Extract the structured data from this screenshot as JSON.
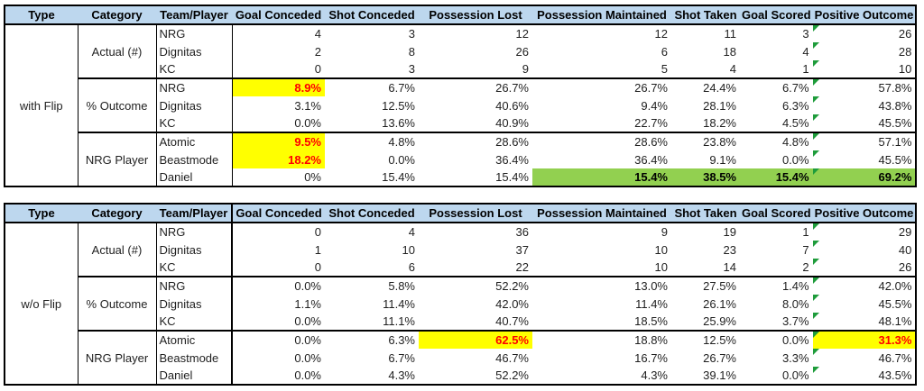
{
  "colors": {
    "header_bg": "#BDD7EE",
    "highlight_yellow": "#FFFF00",
    "highlight_yellow_text": "#FF0000",
    "highlight_green": "#92D050",
    "error_indicator_green": "#1E9C3B",
    "border": "#000000"
  },
  "columns": [
    "Type",
    "Category",
    "Team/Player",
    "Goal Conceded",
    "Shot Conceded",
    "Possession Lost",
    "Possession Maintained",
    "Shot Taken",
    "Goal Scored",
    "Positive Outcome"
  ],
  "error_indicator": {
    "meaning": "excel-error-triangle",
    "applies_to_column": "Positive Outcome"
  },
  "tables": [
    {
      "type_label": "with Flip",
      "groups": [
        {
          "category": "Actual (#)",
          "rows": [
            {
              "team": "NRG",
              "values": [
                "4",
                "3",
                "12",
                "12",
                "11",
                "3",
                "26"
              ]
            },
            {
              "team": "Dignitas",
              "values": [
                "2",
                "8",
                "26",
                "6",
                "18",
                "4",
                "28"
              ]
            },
            {
              "team": "KC",
              "values": [
                "0",
                "3",
                "9",
                "5",
                "4",
                "1",
                "10"
              ]
            }
          ]
        },
        {
          "category": "% Outcome",
          "rows": [
            {
              "team": "NRG",
              "values": [
                {
                  "v": "8.9%",
                  "s": "y"
                },
                "6.7%",
                "26.7%",
                "26.7%",
                "24.4%",
                "6.7%",
                "57.8%"
              ]
            },
            {
              "team": "Dignitas",
              "values": [
                "3.1%",
                "12.5%",
                "40.6%",
                "9.4%",
                "28.1%",
                "6.3%",
                "43.8%"
              ]
            },
            {
              "team": "KC",
              "values": [
                "0.0%",
                "13.6%",
                "40.9%",
                "22.7%",
                "18.2%",
                "4.5%",
                "45.5%"
              ]
            }
          ]
        },
        {
          "category": "NRG Player",
          "rows": [
            {
              "team": "Atomic",
              "values": [
                {
                  "v": "9.5%",
                  "s": "y"
                },
                "4.8%",
                "28.6%",
                "28.6%",
                "23.8%",
                "4.8%",
                "57.1%"
              ]
            },
            {
              "team": "Beastmode",
              "values": [
                {
                  "v": "18.2%",
                  "s": "y"
                },
                "0.0%",
                "36.4%",
                "36.4%",
                "9.1%",
                "0.0%",
                "45.5%"
              ]
            },
            {
              "team": "Daniel",
              "values": [
                "0%",
                "15.4%",
                "15.4%",
                {
                  "v": "15.4%",
                  "s": "g"
                },
                {
                  "v": "38.5%",
                  "s": "g"
                },
                {
                  "v": "15.4%",
                  "s": "g"
                },
                {
                  "v": "69.2%",
                  "s": "g"
                }
              ]
            }
          ]
        }
      ]
    },
    {
      "type_label": "w/o Flip",
      "groups": [
        {
          "category": "Actual (#)",
          "rows": [
            {
              "team": "NRG",
              "values": [
                "0",
                "4",
                "36",
                "9",
                "19",
                "1",
                "29"
              ]
            },
            {
              "team": "Dignitas",
              "values": [
                "1",
                "10",
                "37",
                "10",
                "23",
                "7",
                "40"
              ]
            },
            {
              "team": "KC",
              "values": [
                "0",
                "6",
                "22",
                "10",
                "14",
                "2",
                "26"
              ]
            }
          ]
        },
        {
          "category": "% Outcome",
          "rows": [
            {
              "team": "NRG",
              "values": [
                "0.0%",
                "5.8%",
                "52.2%",
                "13.0%",
                "27.5%",
                "1.4%",
                "42.0%"
              ]
            },
            {
              "team": "Dignitas",
              "values": [
                "1.1%",
                "11.4%",
                "42.0%",
                "11.4%",
                "26.1%",
                "8.0%",
                "45.5%"
              ]
            },
            {
              "team": "KC",
              "values": [
                "0.0%",
                "11.1%",
                "40.7%",
                "18.5%",
                "25.9%",
                "3.7%",
                "48.1%"
              ]
            }
          ]
        },
        {
          "category": "NRG Player",
          "rows": [
            {
              "team": "Atomic",
              "values": [
                "0.0%",
                "6.3%",
                {
                  "v": "62.5%",
                  "s": "y"
                },
                "18.8%",
                "12.5%",
                "0.0%",
                {
                  "v": "31.3%",
                  "s": "y"
                }
              ]
            },
            {
              "team": "Beastmode",
              "values": [
                "0.0%",
                "6.7%",
                "46.7%",
                "16.7%",
                "26.7%",
                "3.3%",
                "46.7%"
              ]
            },
            {
              "team": "Daniel",
              "values": [
                "0.0%",
                "4.3%",
                "52.2%",
                "4.3%",
                "39.1%",
                "0.0%",
                "43.5%"
              ]
            }
          ]
        }
      ]
    }
  ]
}
